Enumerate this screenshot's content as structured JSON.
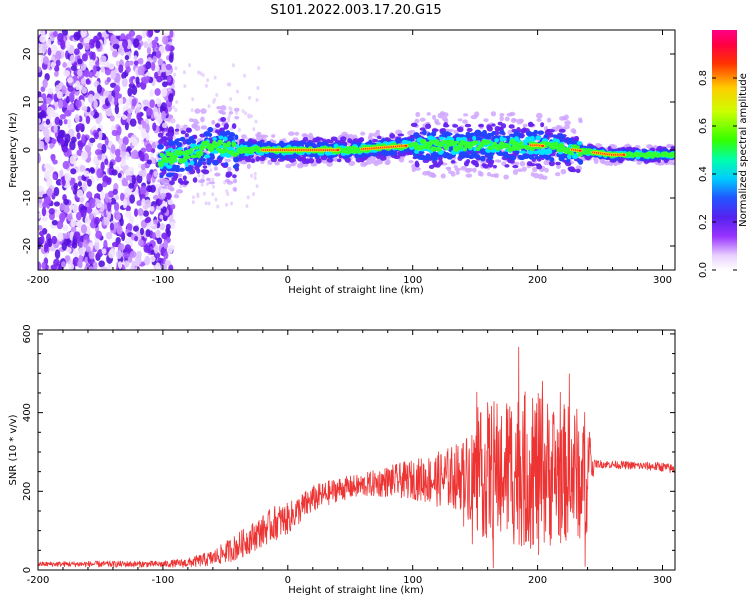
{
  "title": "S101.2022.003.17.20.G15",
  "colors": {
    "snr_line": "#ee3333",
    "axis": "#000000"
  },
  "chart_data": [
    {
      "type": "heatmap",
      "xlabel": "Height of straight line (km)",
      "ylabel": "Frequency (Hz)",
      "xlim": [
        -200,
        310
      ],
      "ylim": [
        -25,
        25
      ],
      "x_ticks": [
        -200,
        -100,
        0,
        100,
        200,
        300
      ],
      "y_ticks": [
        -20,
        -10,
        0,
        10,
        20
      ],
      "colorbar": {
        "label": "Normalized spectral amplitude",
        "range": [
          0,
          1
        ],
        "ticks": [
          0.0,
          0.2,
          0.4,
          0.6,
          0.8
        ],
        "colormap": "rainbow (white-violet-blue-cyan-green-yellow-red-magenta)"
      },
      "ridge_center_hz": [
        [
          -100,
          -2
        ],
        [
          -80,
          -1
        ],
        [
          -60,
          1
        ],
        [
          -40,
          0
        ],
        [
          0,
          0
        ],
        [
          50,
          0
        ],
        [
          100,
          1
        ],
        [
          150,
          1
        ],
        [
          200,
          1
        ],
        [
          230,
          0
        ],
        [
          260,
          -1
        ],
        [
          310,
          -1
        ]
      ]
    },
    {
      "type": "line",
      "xlabel": "Height of straight line (km)",
      "ylabel": "SNR (10 * v/v)",
      "xlim": [
        -200,
        310
      ],
      "ylim": [
        0,
        610
      ],
      "x_ticks": [
        -200,
        -100,
        0,
        100,
        200,
        300
      ],
      "y_ticks": [
        0,
        200,
        400,
        600
      ],
      "series": [
        {
          "x": [
            -200,
            -150,
            -100,
            -80,
            -60,
            -40,
            -20,
            -10,
            0,
            20,
            40,
            60,
            80,
            100,
            120,
            140,
            150,
            160,
            180,
            200,
            220,
            240,
            245,
            260,
            280,
            300,
            310
          ],
          "y": [
            15,
            15,
            15,
            18,
            30,
            60,
            100,
            120,
            130,
            180,
            205,
            215,
            225,
            230,
            230,
            240,
            240,
            250,
            260,
            250,
            245,
            250,
            270,
            268,
            265,
            262,
            255
          ],
          "spread": [
            6,
            8,
            8,
            12,
            20,
            35,
            40,
            45,
            40,
            35,
            30,
            30,
            40,
            50,
            70,
            90,
            140,
            180,
            200,
            200,
            180,
            160,
            10,
            10,
            10,
            12,
            12
          ]
        }
      ]
    }
  ]
}
